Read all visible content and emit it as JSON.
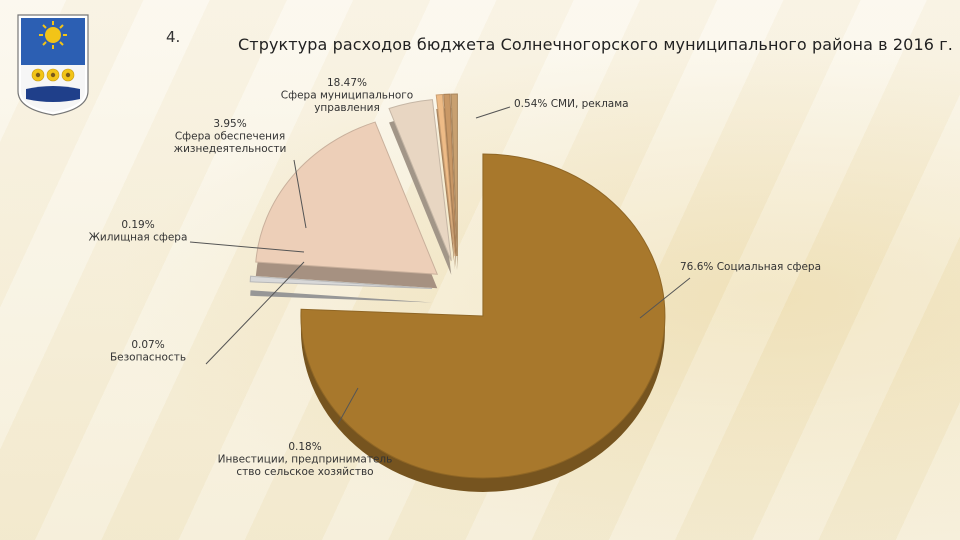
{
  "slide": {
    "number": "4.",
    "title": "Структура расходов бюджета Солнечногорского муниципального района  в 2016 г."
  },
  "colors": {
    "social": "#a8782c",
    "management": "#edcfb8",
    "housing": "#eebb86",
    "smi": "#d8d8d8",
    "life_support": "#e8d6c2",
    "security": "#c99866",
    "investments": "#c8a070",
    "leader_line": "#555555",
    "emblem_blue": "#2c5fb3",
    "emblem_yellow": "#f2c418"
  },
  "icons": [
    "emblem-icon",
    "sun-icon",
    "sunflower-icon"
  ],
  "chart_data": {
    "type": "pie",
    "title": "Структура расходов бюджета Солнечногорского муниципального района  в 2016 г.",
    "slices": [
      {
        "key": "social",
        "value": 76.6,
        "pct": "76.6%",
        "name": "Социальная сфера"
      },
      {
        "key": "smi",
        "value": 0.54,
        "pct": "0.54%",
        "name": "СМИ, реклама"
      },
      {
        "key": "management",
        "value": 18.47,
        "pct": "18.47%",
        "name": "Сфера муниципального управления"
      },
      {
        "key": "life_support",
        "value": 3.95,
        "pct": "3.95%",
        "name": "Сфера обеспечения жизнедеятельности"
      },
      {
        "key": "housing",
        "value": 0.19,
        "pct": "0.19%",
        "name": "Жилищная  сфера"
      },
      {
        "key": "security",
        "value": 0.07,
        "pct": "0.07%",
        "name": "Безопасность"
      },
      {
        "key": "investments",
        "value": 0.18,
        "pct": "0.18%",
        "name": "Инвестиции, предприниматель ство  сельское хозяйство"
      }
    ],
    "labels": {
      "social": [
        "76.6%  Социальная сфера"
      ],
      "smi": [
        "0.54% СМИ, реклама"
      ],
      "management": [
        "18.47%",
        "Сфера муниципального",
        "управления"
      ],
      "life_support": [
        "3.95%",
        "Сфера обеспечения",
        "жизнедеятельности"
      ],
      "housing": [
        "0.19%",
        "Жилищная  сфера"
      ],
      "security": [
        "0.07%",
        "Безопасность"
      ],
      "investments": [
        "0.18%",
        "Инвестиции, предприниматель",
        "ство  сельское хозяйство"
      ]
    },
    "legend": "none",
    "grid": false
  }
}
